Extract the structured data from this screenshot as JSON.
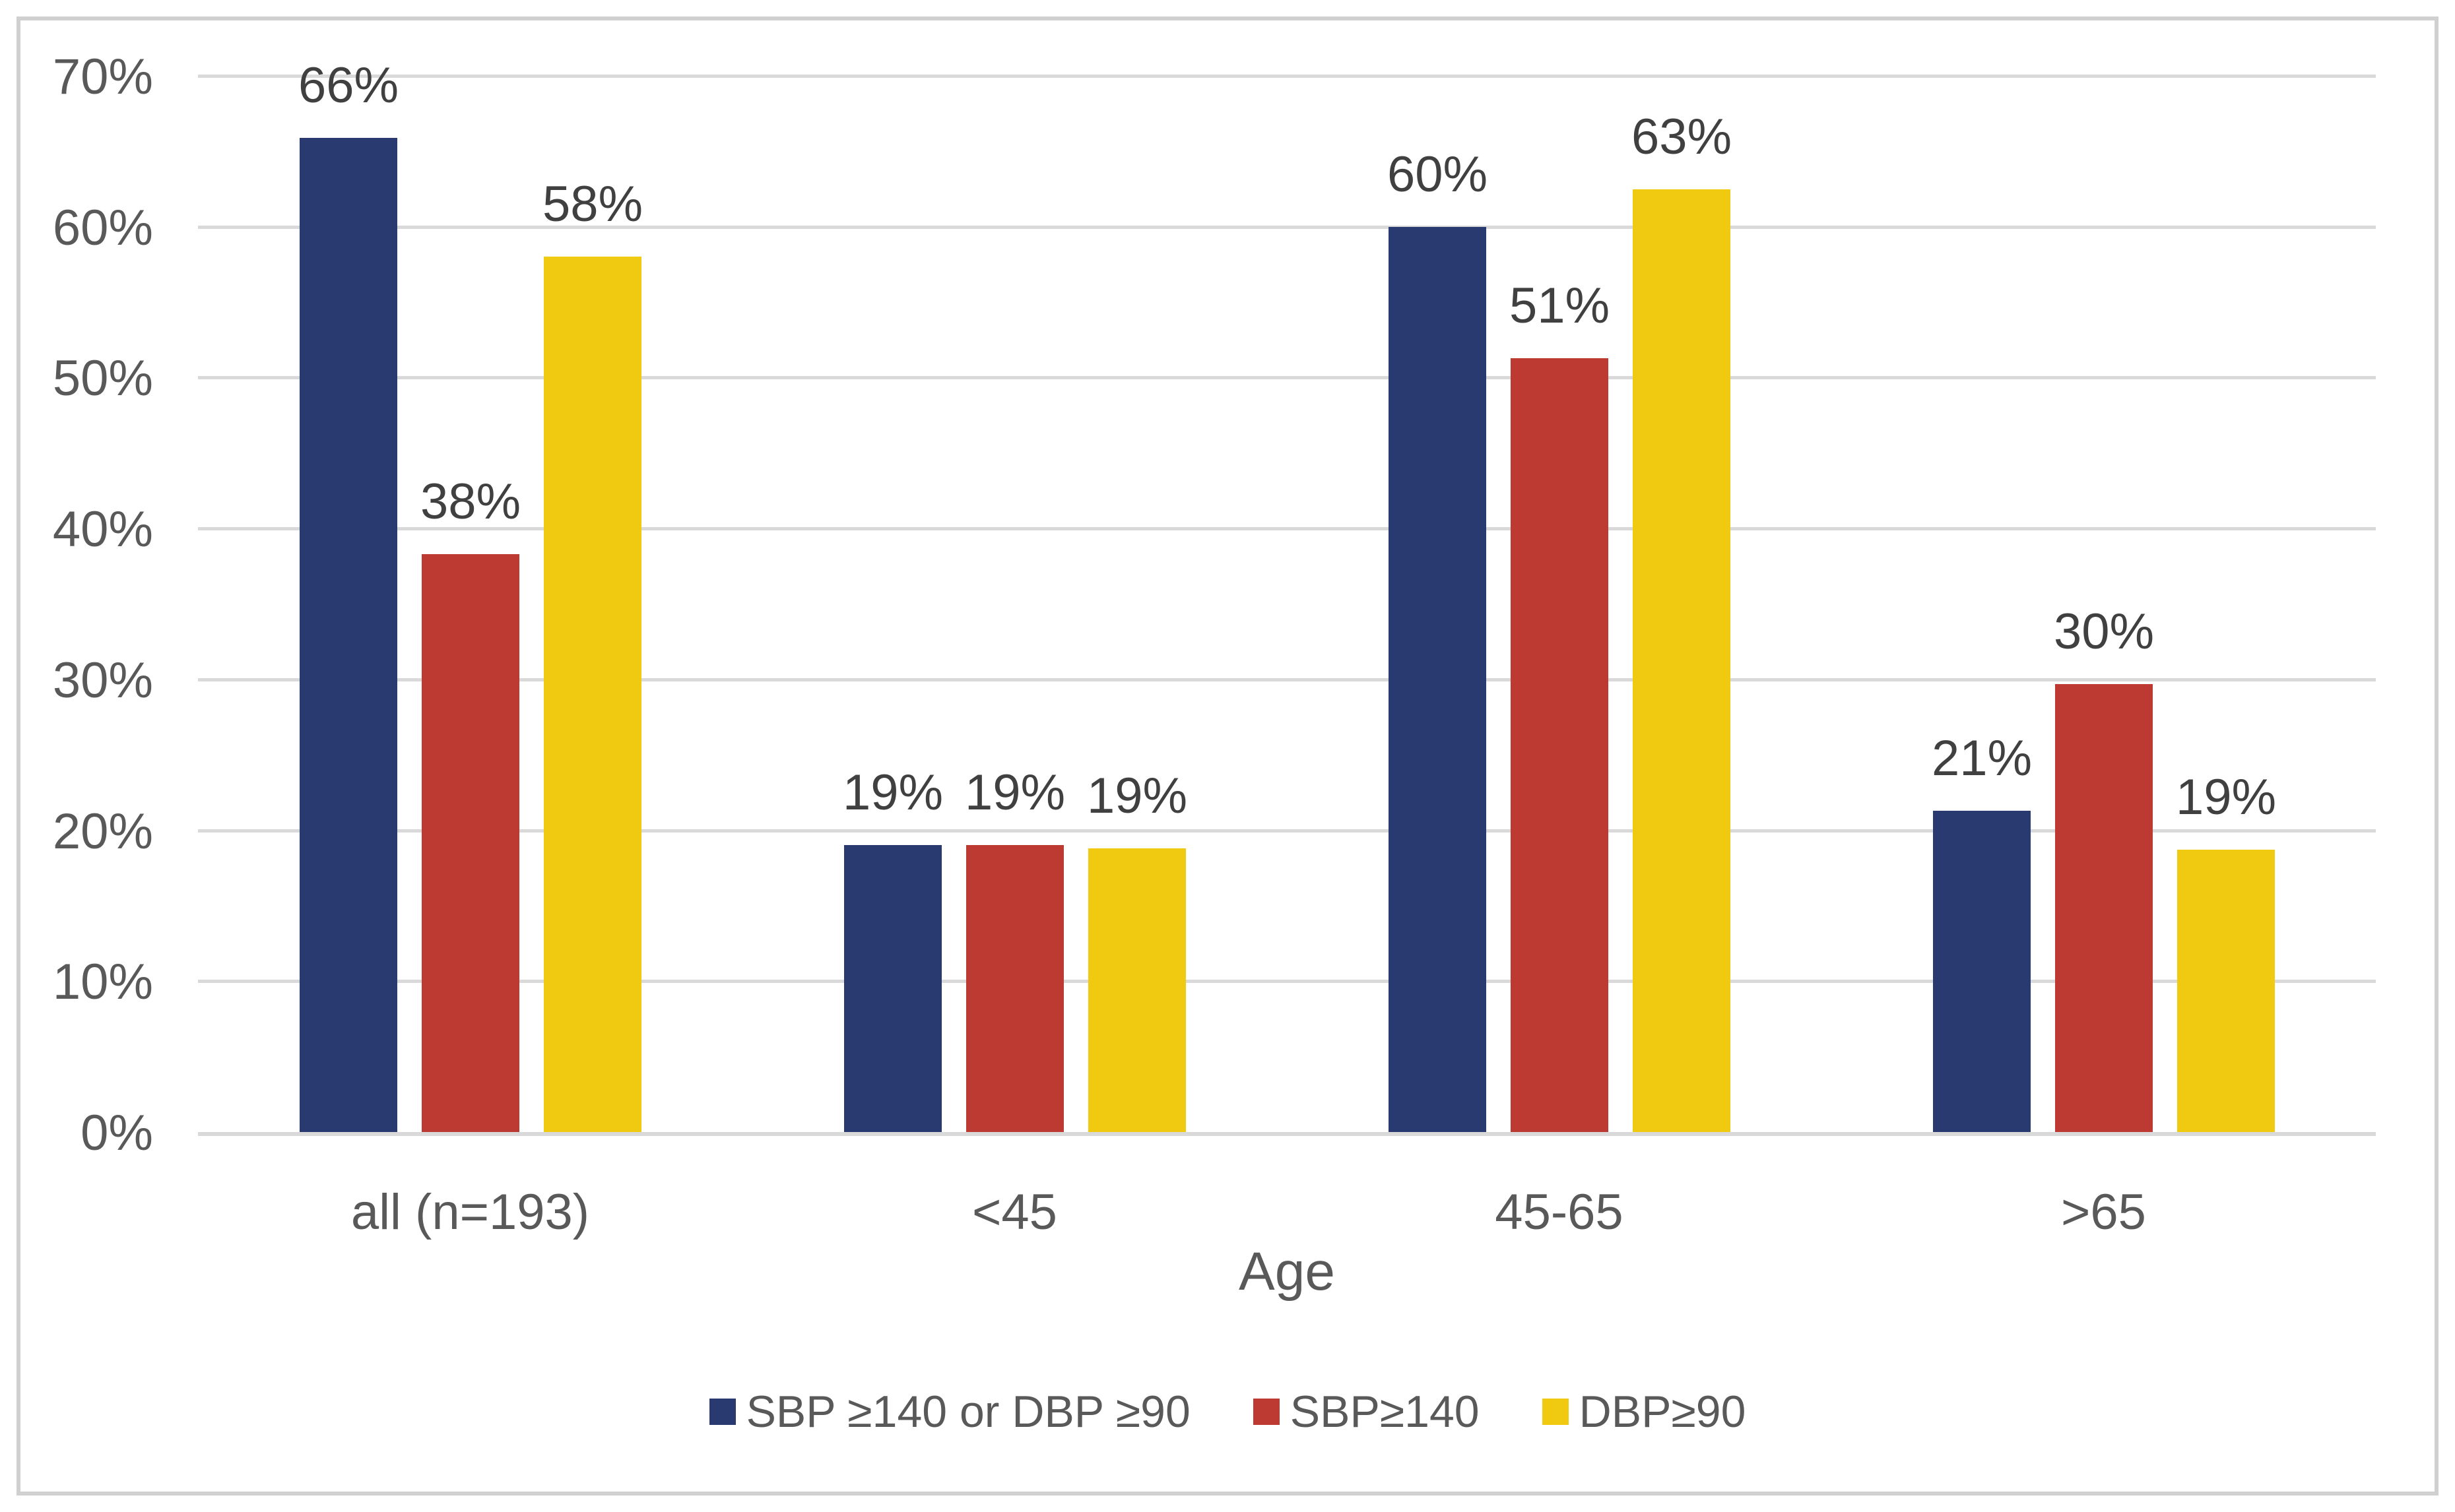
{
  "chart_data": {
    "type": "bar",
    "title": "",
    "xlabel": "Age",
    "ylabel": "",
    "ylim": [
      0,
      70
    ],
    "y_unit": "%",
    "y_ticks": [
      "0%",
      "10%",
      "20%",
      "30%",
      "40%",
      "50%",
      "60%",
      "70%"
    ],
    "grid": true,
    "legend_position": "bottom",
    "categories": [
      "all (n=193)",
      "<45",
      "45-65",
      ">65"
    ],
    "series": [
      {
        "name": "SBP ≥140 or DBP ≥90",
        "color": "#283A70",
        "values": [
          66,
          19,
          60,
          21
        ],
        "bar_heights_pct": [
          65.9,
          19.0,
          60.0,
          21.3
        ],
        "labels": [
          "66%",
          "19%",
          "60%",
          "21%"
        ]
      },
      {
        "name": "SBP≥140",
        "color": "#BC3A32",
        "values": [
          38,
          19,
          51,
          30
        ],
        "bar_heights_pct": [
          38.3,
          19.0,
          51.3,
          29.7
        ],
        "labels": [
          "38%",
          "19%",
          "51%",
          "30%"
        ]
      },
      {
        "name": "DBP≥90",
        "color": "#F0CA11",
        "values": [
          58,
          19,
          63,
          19
        ],
        "bar_heights_pct": [
          58.0,
          18.8,
          62.5,
          18.7
        ],
        "labels": [
          "58%",
          "19%",
          "63%",
          "19%"
        ]
      }
    ],
    "colors": {
      "axis_text": "#595959",
      "data_label_text": "#404040",
      "gridline": "#D9D9D9",
      "frame_border": "#D0D0D0",
      "background": "#FFFFFF"
    }
  }
}
